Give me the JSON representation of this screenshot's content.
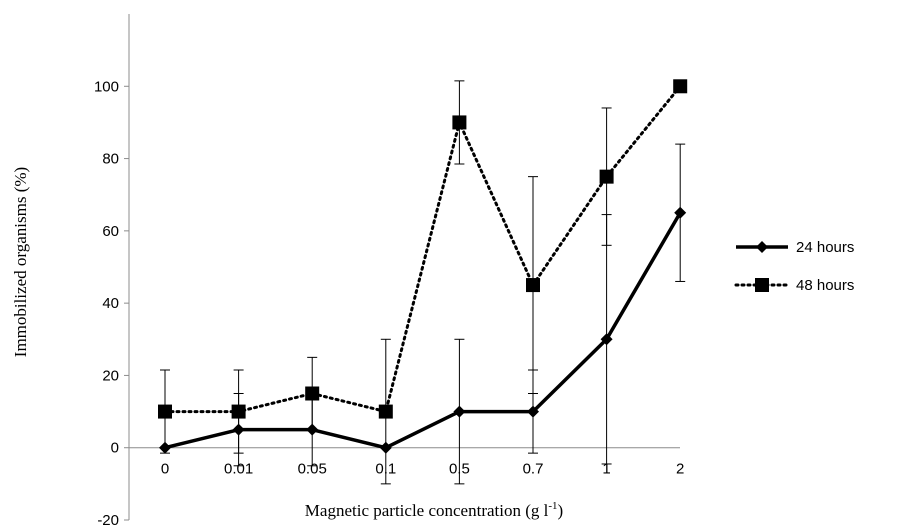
{
  "chart_data": {
    "type": "line",
    "categories": [
      "0",
      "0.01",
      "0.05",
      "0.1",
      "0.5",
      "0.7",
      "1",
      "2"
    ],
    "xlabel_main": "Magnetic particle concentration (g l",
    "xlabel_sup": "-1",
    "xlabel_close": ")",
    "ylabel": "Immobilized organisms (%)",
    "ylim": [
      -20,
      120
    ],
    "yticks": [
      -20,
      0,
      20,
      40,
      60,
      80,
      100
    ],
    "grid": false,
    "legend_position": "right",
    "series": [
      {
        "name": "24 hours",
        "marker": "diamond",
        "line_style": "solid",
        "color": "#000000",
        "values": [
          0,
          5,
          5,
          0,
          10,
          10,
          30,
          65
        ],
        "errors": [
          0,
          10,
          10,
          0,
          20,
          11.5,
          34.5,
          19
        ]
      },
      {
        "name": "48 hours",
        "marker": "square",
        "line_style": "dotted",
        "color": "#000000",
        "values": [
          10,
          10,
          15,
          10,
          90,
          45,
          75,
          100
        ],
        "errors": [
          11.5,
          11.5,
          10,
          20,
          11.5,
          30,
          19,
          0
        ]
      }
    ]
  }
}
